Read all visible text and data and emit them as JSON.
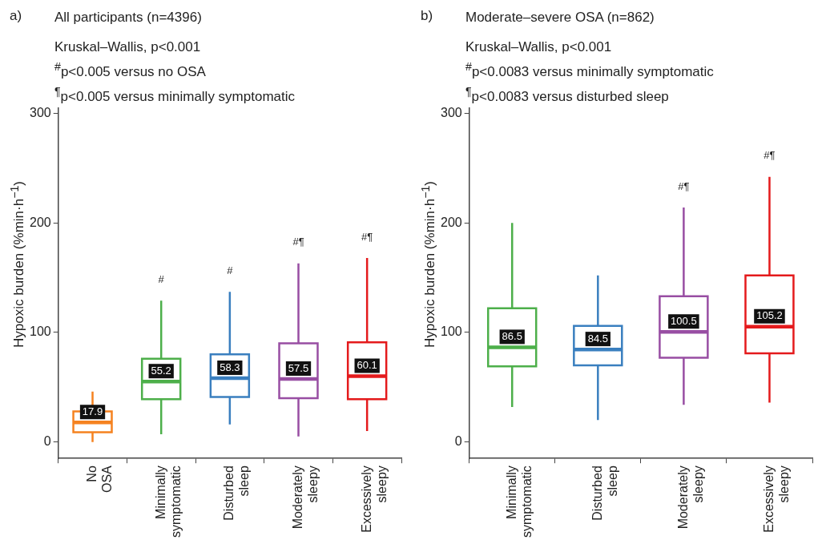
{
  "chart_data": [
    {
      "type": "box",
      "title": "All participants (n=4396)",
      "subtitle": "Kruskal–Wallis, p<0.001",
      "ylabel": "Hypoxic burden (%min·h$^{−1}$)",
      "categories": [
        "No OSA",
        "Minimally symptomatic",
        "Disturbed sleep",
        "Moderately sleepy",
        "Excessively sleepy"
      ],
      "colors": [
        "#f58220",
        "#4daf4a",
        "#3a7fbf",
        "#984ea3",
        "#e41a1c"
      ],
      "boxes": [
        {
          "low": 0,
          "q1": 9,
          "median": 17.9,
          "q3": 28,
          "high": 46
        },
        {
          "low": 7,
          "q1": 39,
          "median": 55.2,
          "q3": 76,
          "high": 129
        },
        {
          "low": 16,
          "q1": 41,
          "median": 58.3,
          "q3": 80,
          "high": 137
        },
        {
          "low": 5,
          "q1": 40,
          "median": 57.5,
          "q3": 90,
          "high": 163
        },
        {
          "low": 10,
          "q1": 39,
          "median": 60.1,
          "q3": 91,
          "high": 168
        }
      ],
      "value_labels": [
        "17.9",
        "55.2",
        "58.3",
        "57.5",
        "60.1"
      ],
      "ylim": [
        -15,
        305
      ],
      "yticks": [
        0,
        100,
        200,
        300
      ],
      "grid": false,
      "legend": false,
      "annotations": [
        "a)",
        "$^{#}$p<0.005 versus no OSA",
        "$^{¶}$p<0.005 versus minimally symptomatic",
        "#",
        "#",
        "#¶",
        "#¶"
      ]
    },
    {
      "type": "box",
      "title": "Moderate–severe OSA (n=862)",
      "subtitle": "Kruskal–Wallis, p<0.001",
      "ylabel": "Hypoxic burden (%min·h$^{−1}$)",
      "categories": [
        "Minimally symptomatic",
        "Disturbed sleep",
        "Moderately sleepy",
        "Excessively sleepy"
      ],
      "colors": [
        "#4daf4a",
        "#3a7fbf",
        "#984ea3",
        "#e41a1c"
      ],
      "boxes": [
        {
          "low": 32,
          "q1": 69,
          "median": 86.5,
          "q3": 122,
          "high": 200
        },
        {
          "low": 20,
          "q1": 70,
          "median": 84.5,
          "q3": 106,
          "high": 152
        },
        {
          "low": 34,
          "q1": 77,
          "median": 100.5,
          "q3": 133,
          "high": 214
        },
        {
          "low": 36,
          "q1": 81,
          "median": 105.2,
          "q3": 152,
          "high": 242
        }
      ],
      "value_labels": [
        "86.5",
        "84.5",
        "100.5",
        "105.2"
      ],
      "ylim": [
        -15,
        305
      ],
      "yticks": [
        0,
        100,
        200,
        300
      ],
      "grid": false,
      "legend": false,
      "annotations": [
        "b)",
        "$^{#}$p<0.0083 versus minimally symptomatic",
        "$^{¶}$p<0.0083 versus disturbed sleep",
        "#¶",
        "#¶"
      ]
    }
  ]
}
